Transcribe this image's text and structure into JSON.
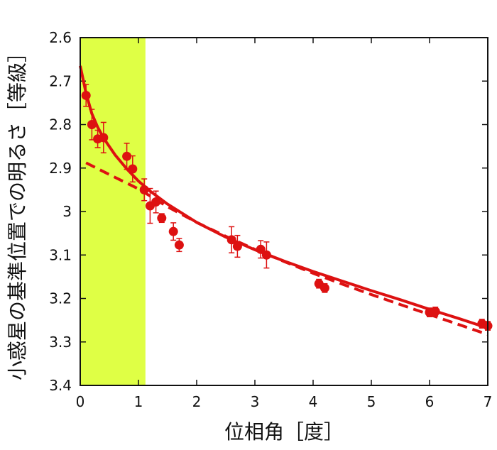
{
  "chart_data": {
    "type": "scatter",
    "xlabel": "位相角［度］",
    "ylabel": "小惑星の基準位置での明るさ［等級］",
    "xlim": [
      0,
      7
    ],
    "ylim": [
      2.6,
      3.4
    ],
    "y_inverted": true,
    "xticks": [
      "0",
      "1",
      "2",
      "3",
      "4",
      "5",
      "6",
      "7"
    ],
    "yticks": [
      "2.6",
      "2.7",
      "2.8",
      "2.9",
      "3",
      "3.1",
      "3.2",
      "3.3",
      "3.4"
    ],
    "highlight_x_range": [
      0,
      1.12
    ],
    "highlight_color": "#dfff45",
    "series_color": "#dd1111",
    "points": [
      {
        "x": 0.1,
        "y": 2.733,
        "err": 0.025
      },
      {
        "x": 0.2,
        "y": 2.8,
        "err": 0.035
      },
      {
        "x": 0.3,
        "y": 2.833,
        "err": 0.02
      },
      {
        "x": 0.4,
        "y": 2.83,
        "err": 0.035
      },
      {
        "x": 0.8,
        "y": 2.873,
        "err": 0.03
      },
      {
        "x": 0.9,
        "y": 2.902,
        "err": 0.03
      },
      {
        "x": 1.1,
        "y": 2.95,
        "err": 0.025
      },
      {
        "x": 1.2,
        "y": 2.987,
        "err": 0.04
      },
      {
        "x": 1.3,
        "y": 2.978,
        "err": 0.025
      },
      {
        "x": 1.4,
        "y": 3.015,
        "err": 0.01
      },
      {
        "x": 1.6,
        "y": 3.046,
        "err": 0.02
      },
      {
        "x": 1.7,
        "y": 3.077,
        "err": 0.015
      },
      {
        "x": 2.6,
        "y": 3.065,
        "err": 0.03
      },
      {
        "x": 2.7,
        "y": 3.08,
        "err": 0.025
      },
      {
        "x": 3.1,
        "y": 3.087,
        "err": 0.02
      },
      {
        "x": 3.2,
        "y": 3.1,
        "err": 0.03
      },
      {
        "x": 4.1,
        "y": 3.166,
        "err": 0.01
      },
      {
        "x": 4.2,
        "y": 3.176,
        "err": 0.01
      },
      {
        "x": 6.0,
        "y": 3.232,
        "err": 0.01
      },
      {
        "x": 6.1,
        "y": 3.23,
        "err": 0.01
      },
      {
        "x": 6.9,
        "y": 3.258,
        "err": 0.01
      },
      {
        "x": 7.0,
        "y": 3.263,
        "err": 0.01
      }
    ],
    "solid_curve": {
      "x": [
        0.0,
        0.1,
        0.2,
        0.3,
        0.4,
        0.6,
        0.8,
        1.0,
        1.2,
        1.5,
        2.0,
        2.5,
        3.0,
        3.5,
        4.0,
        4.5,
        5.0,
        5.5,
        6.0,
        6.5,
        7.0
      ],
      "y": [
        2.665,
        2.728,
        2.775,
        2.806,
        2.831,
        2.87,
        2.902,
        2.93,
        2.953,
        2.983,
        3.025,
        3.059,
        3.088,
        3.114,
        3.138,
        3.16,
        3.182,
        3.203,
        3.225,
        3.246,
        3.268
      ]
    },
    "dashed_curve": {
      "x": [
        0.1,
        0.5,
        1.0,
        1.5,
        2.0,
        2.5,
        3.0,
        3.5,
        4.0,
        4.5,
        5.0,
        5.5,
        6.0,
        6.5,
        7.0
      ],
      "y": [
        2.888,
        2.915,
        2.948,
        2.989,
        3.025,
        3.057,
        3.087,
        3.115,
        3.142,
        3.167,
        3.191,
        3.214,
        3.237,
        3.26,
        3.283
      ]
    }
  }
}
